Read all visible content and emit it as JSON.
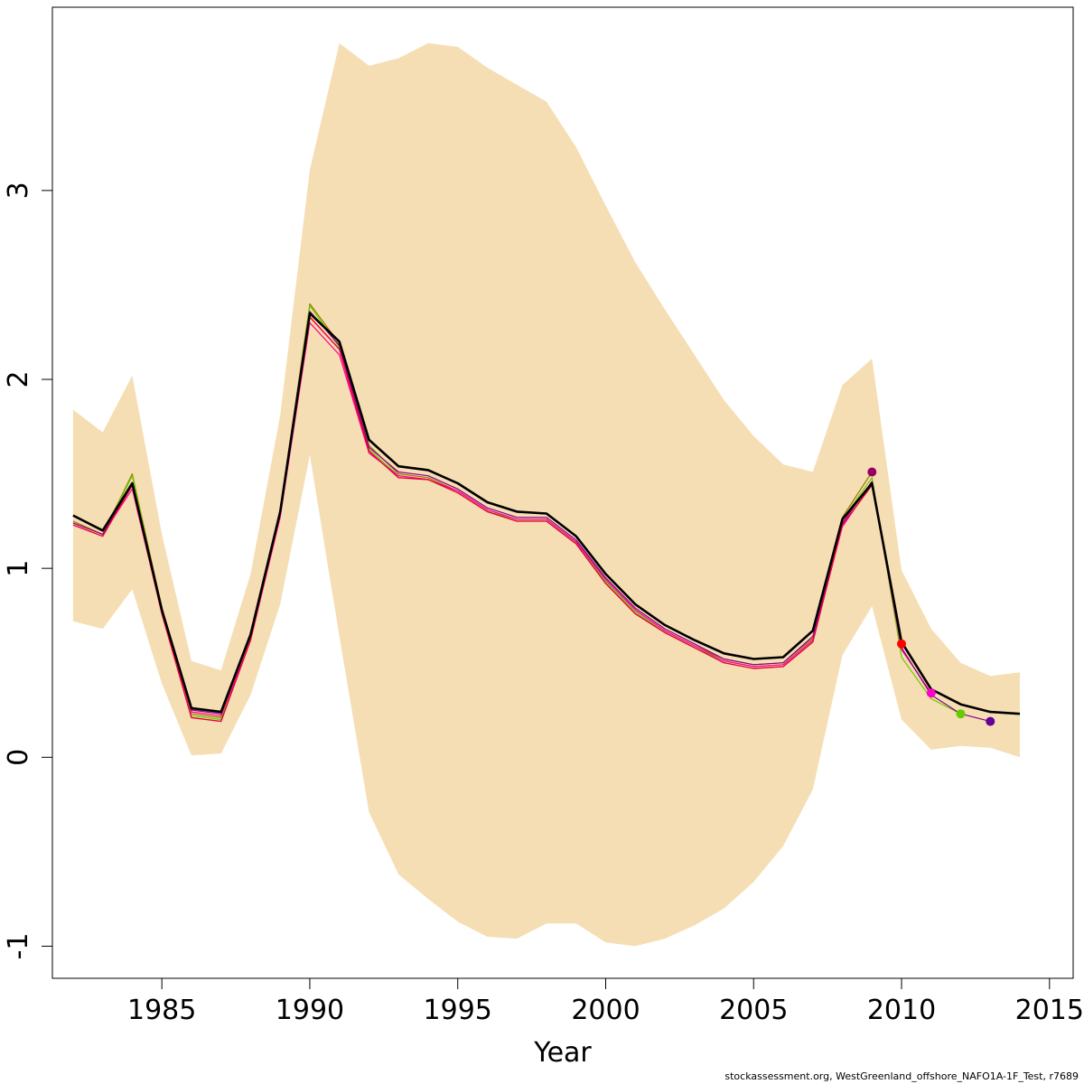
{
  "chart_data": {
    "type": "line",
    "title": "",
    "xlabel": "Year",
    "ylabel": "",
    "xlim": [
      1981.3,
      2015.8
    ],
    "ylim": [
      -1.17,
      3.97
    ],
    "x_ticks": [
      1985,
      1990,
      1995,
      2000,
      2005,
      2010,
      2015
    ],
    "x_tick_labels": [
      "1985",
      "1990",
      "1995",
      "2000",
      "2005",
      "2010",
      "2015"
    ],
    "y_ticks": [
      -1,
      0,
      1,
      2,
      3
    ],
    "y_tick_labels": [
      "-1",
      "0",
      "1",
      "2",
      "3"
    ],
    "grid": false,
    "legend": "none",
    "band": {
      "color": "#F5DEB3",
      "x": [
        1982,
        1983,
        1984,
        1985,
        1986,
        1987,
        1988,
        1989,
        1990,
        1991,
        1992,
        1993,
        1994,
        1995,
        1996,
        1997,
        1998,
        1999,
        2000,
        2001,
        2002,
        2003,
        2004,
        2005,
        2006,
        2007,
        2008,
        2009,
        2010,
        2011,
        2012,
        2013,
        2014
      ],
      "upper": [
        1.84,
        1.72,
        2.02,
        1.18,
        0.51,
        0.46,
        0.97,
        1.81,
        3.11,
        3.78,
        3.66,
        3.7,
        3.78,
        3.76,
        3.65,
        3.56,
        3.47,
        3.23,
        2.92,
        2.62,
        2.37,
        2.13,
        1.89,
        1.7,
        1.55,
        1.51,
        1.97,
        2.11,
        0.99,
        0.68,
        0.5,
        0.43,
        0.45
      ],
      "lower": [
        0.72,
        0.68,
        0.89,
        0.39,
        0.01,
        0.02,
        0.33,
        0.81,
        1.6,
        0.64,
        -0.29,
        -0.62,
        -0.75,
        -0.87,
        -0.95,
        -0.96,
        -0.88,
        -0.88,
        -0.98,
        -1.0,
        -0.96,
        -0.89,
        -0.8,
        -0.66,
        -0.47,
        -0.17,
        0.54,
        0.8,
        0.2,
        0.04,
        0.06,
        0.05,
        0.0
      ]
    },
    "series": [
      {
        "color": "#000000",
        "width": 2.6,
        "x": [
          1982,
          1983,
          1984,
          1985,
          1986,
          1987,
          1988,
          1989,
          1990,
          1991,
          1992,
          1993,
          1994,
          1995,
          1996,
          1997,
          1998,
          1999,
          2000,
          2001,
          2002,
          2003,
          2004,
          2005,
          2006,
          2007,
          2008,
          2009,
          2010,
          2011,
          2012,
          2013,
          2014
        ],
        "values": [
          1.28,
          1.2,
          1.45,
          0.78,
          0.26,
          0.24,
          0.65,
          1.3,
          2.35,
          2.2,
          1.68,
          1.54,
          1.52,
          1.45,
          1.35,
          1.3,
          1.29,
          1.17,
          0.97,
          0.81,
          0.7,
          0.62,
          0.55,
          0.52,
          0.53,
          0.67,
          1.26,
          1.45,
          0.61,
          0.36,
          0.28,
          0.24,
          0.23
        ]
      },
      {
        "color": "#9B7600",
        "width": 1.2,
        "x": [
          1982,
          1983,
          1984,
          1985,
          1986,
          1987,
          1988,
          1989,
          1990,
          1991,
          1992,
          1993,
          1994,
          1995,
          1996,
          1997,
          1998,
          1999,
          2000,
          2001,
          2002,
          2003,
          2004,
          2005,
          2006,
          2007,
          2008,
          2009
        ],
        "values": [
          1.25,
          1.18,
          1.5,
          0.79,
          0.23,
          0.21,
          0.64,
          1.31,
          2.4,
          2.19,
          1.65,
          1.5,
          1.48,
          1.41,
          1.31,
          1.26,
          1.26,
          1.14,
          0.94,
          0.78,
          0.67,
          0.59,
          0.52,
          0.49,
          0.5,
          0.63,
          1.27,
          1.51
        ]
      },
      {
        "color": "#66CC00",
        "width": 1.2,
        "x": [
          1982,
          1983,
          1984,
          1985,
          1986,
          1987,
          1988,
          1989,
          1990,
          1991,
          1992,
          1993,
          1994,
          1995,
          1996,
          1997,
          1998,
          1999,
          2000,
          2001,
          2002,
          2003,
          2004,
          2005,
          2006,
          2007,
          2008,
          2009,
          2010,
          2011,
          2012
        ],
        "values": [
          1.24,
          1.18,
          1.49,
          0.78,
          0.22,
          0.2,
          0.63,
          1.3,
          2.39,
          2.17,
          1.63,
          1.49,
          1.47,
          1.4,
          1.3,
          1.26,
          1.26,
          1.14,
          0.93,
          0.77,
          0.66,
          0.58,
          0.51,
          0.48,
          0.49,
          0.62,
          1.26,
          1.48,
          0.53,
          0.31,
          0.23
        ]
      },
      {
        "color": "#FF0099",
        "width": 1.2,
        "x": [
          1982,
          1983,
          1984,
          1985,
          1986,
          1987,
          1988,
          1989,
          1990,
          1991,
          1992,
          1993,
          1994,
          1995,
          1996,
          1997,
          1998,
          1999,
          2000,
          2001,
          2002,
          2003,
          2004,
          2005,
          2006,
          2007,
          2008,
          2009,
          2010,
          2011
        ],
        "values": [
          1.24,
          1.18,
          1.42,
          0.76,
          0.24,
          0.22,
          0.62,
          1.27,
          2.3,
          2.13,
          1.61,
          1.49,
          1.47,
          1.41,
          1.31,
          1.26,
          1.26,
          1.14,
          0.94,
          0.78,
          0.67,
          0.59,
          0.51,
          0.48,
          0.49,
          0.62,
          1.22,
          1.45,
          0.57,
          0.34
        ]
      },
      {
        "color": "#8B008B",
        "width": 1.2,
        "x": [
          1982,
          1983,
          1984,
          1985,
          1986,
          1987,
          1988,
          1989,
          1990,
          1991,
          1992,
          1993,
          1994,
          1995,
          1996,
          1997,
          1998,
          1999,
          2000,
          2001,
          2002,
          2003,
          2004,
          2005,
          2006,
          2007,
          2008,
          2009,
          2010,
          2011,
          2012,
          2013
        ],
        "values": [
          1.24,
          1.18,
          1.45,
          0.77,
          0.25,
          0.23,
          0.64,
          1.3,
          2.36,
          2.18,
          1.64,
          1.51,
          1.49,
          1.42,
          1.32,
          1.27,
          1.27,
          1.15,
          0.95,
          0.79,
          0.68,
          0.6,
          0.52,
          0.49,
          0.5,
          0.64,
          1.24,
          1.46,
          0.58,
          0.33,
          0.23,
          0.19
        ]
      },
      {
        "color": "#E8003A",
        "width": 1.4,
        "x": [
          1982,
          1983,
          1984,
          1985,
          1986,
          1987,
          1988,
          1989,
          1990,
          1991,
          1992,
          1993,
          1994,
          1995,
          1996,
          1997,
          1998,
          1999,
          2000,
          2001,
          2002,
          2003,
          2004,
          2005,
          2006,
          2007,
          2008,
          2009,
          2010
        ],
        "values": [
          1.23,
          1.17,
          1.44,
          0.76,
          0.21,
          0.19,
          0.62,
          1.29,
          2.33,
          2.16,
          1.62,
          1.48,
          1.47,
          1.4,
          1.3,
          1.25,
          1.25,
          1.13,
          0.92,
          0.76,
          0.66,
          0.58,
          0.5,
          0.47,
          0.48,
          0.61,
          1.23,
          1.44,
          0.6
        ]
      }
    ],
    "points": [
      {
        "x": 2009,
        "y": 1.51,
        "color": "#990066"
      },
      {
        "x": 2010,
        "y": 0.6,
        "color": "#FF0000"
      },
      {
        "x": 2011,
        "y": 0.34,
        "color": "#FF00CC"
      },
      {
        "x": 2012,
        "y": 0.23,
        "color": "#66CC00"
      },
      {
        "x": 2013,
        "y": 0.19,
        "color": "#660099"
      }
    ]
  },
  "footer": "stockassessment.org, WestGreenland_offshore_NAFO1A-1F_Test, r7689"
}
